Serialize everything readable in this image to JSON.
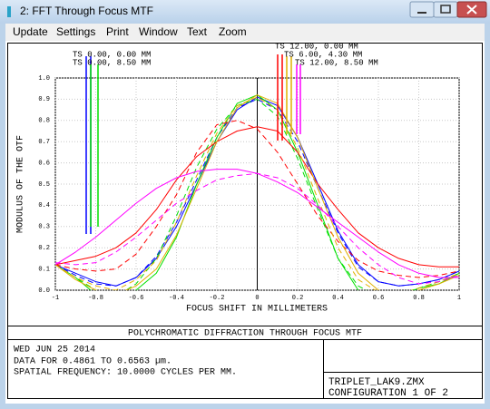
{
  "window": {
    "title": "2: FFT Through Focus MTF"
  },
  "menu": [
    "Update",
    "Settings",
    "Print",
    "Window",
    "Text",
    "Zoom"
  ],
  "chart_data": {
    "type": "line",
    "title": "POLYCHROMATIC DIFFRACTION THROUGH FOCUS MTF",
    "x_label": "FOCUS SHIFT IN MILLIMETERS",
    "y_label": "MODULUS OF THE OTF",
    "x": [
      -1,
      -0.9,
      -0.8,
      -0.7,
      -0.6,
      -0.5,
      -0.4,
      -0.3,
      -0.2,
      -0.1,
      0,
      0.1,
      0.2,
      0.3,
      0.4,
      0.5,
      0.6,
      0.7,
      0.8,
      0.9,
      1
    ],
    "xlim": [
      -1,
      1
    ],
    "ylim": [
      0,
      1
    ],
    "xticks": [
      -1,
      -0.8,
      -0.6,
      -0.4,
      -0.2,
      0,
      0.2,
      0.4,
      0.6,
      0.8,
      1
    ],
    "yticks": [
      {
        "value": 0,
        "label": "0.0"
      },
      0.1,
      0.2,
      0.3,
      0.4,
      0.5,
      0.6,
      0.7,
      0.8,
      0.9,
      {
        "value": 1,
        "label": "1.0"
      }
    ],
    "grid": true,
    "series": [
      {
        "name": "TS 0.00, 0.00 MM",
        "color": "#0000ff",
        "values": [
          0.12,
          0.08,
          0.04,
          0.02,
          0.06,
          0.15,
          0.3,
          0.5,
          0.7,
          0.85,
          0.91,
          0.87,
          0.72,
          0.5,
          0.28,
          0.12,
          0.04,
          0.02,
          0.03,
          0.05,
          0.09
        ],
        "s_values": [
          0.12,
          0.07,
          0.03,
          0.02,
          0.06,
          0.16,
          0.32,
          0.52,
          0.72,
          0.86,
          0.9,
          0.85,
          0.7,
          0.48,
          0.27,
          0.11,
          0.04,
          0.02,
          0.03,
          0.05,
          0.09
        ]
      },
      {
        "name": "TS 0.00, 8.50 MM",
        "color": "#00e000",
        "values": [
          0.12,
          0.06,
          -0.02,
          -0.05,
          0,
          0.08,
          0.25,
          0.5,
          0.72,
          0.88,
          0.92,
          0.85,
          0.65,
          0.4,
          0.15,
          0,
          -0.05,
          -0.03,
          0.01,
          0.03,
          0.08
        ],
        "s_values": [
          0.12,
          0.06,
          0,
          -0.03,
          0.03,
          0.15,
          0.35,
          0.58,
          0.76,
          0.87,
          0.9,
          0.82,
          0.62,
          0.38,
          0.15,
          0.02,
          -0.03,
          -0.02,
          0.01,
          0.04,
          0.08
        ]
      },
      {
        "name": "TS 12.00, 0.00 MM",
        "color": "#ff0000",
        "values": [
          0.12,
          0.14,
          0.16,
          0.2,
          0.27,
          0.38,
          0.52,
          0.63,
          0.7,
          0.75,
          0.77,
          0.75,
          0.65,
          0.5,
          0.38,
          0.27,
          0.2,
          0.15,
          0.12,
          0.11,
          0.11
        ],
        "s_values": [
          0.12,
          0.1,
          0.09,
          0.1,
          0.17,
          0.3,
          0.45,
          0.65,
          0.78,
          0.8,
          0.76,
          0.65,
          0.5,
          0.35,
          0.23,
          0.14,
          0.09,
          0.07,
          0.06,
          0.07,
          0.09
        ]
      },
      {
        "name": "TS 6.00, 4.30 MM",
        "color": "#e0b000",
        "values": [
          0.12,
          0.05,
          0,
          -0.02,
          0.02,
          0.1,
          0.26,
          0.48,
          0.7,
          0.86,
          0.92,
          0.88,
          0.72,
          0.48,
          0.25,
          0.08,
          0,
          -0.02,
          0,
          0.03,
          0.07
        ],
        "s_values": [
          0.12,
          0.06,
          0.02,
          0,
          0.05,
          0.14,
          0.32,
          0.54,
          0.74,
          0.87,
          0.91,
          0.85,
          0.67,
          0.43,
          0.2,
          0.05,
          -0.01,
          -0.02,
          0.01,
          0.04,
          0.08
        ]
      },
      {
        "name": "TS 12.00, 8.50 MM",
        "color": "#ff00ff",
        "values": [
          0.12,
          0.18,
          0.25,
          0.33,
          0.41,
          0.48,
          0.53,
          0.56,
          0.57,
          0.57,
          0.55,
          0.51,
          0.46,
          0.39,
          0.32,
          0.25,
          0.18,
          0.12,
          0.08,
          0.06,
          0.06
        ],
        "s_values": [
          0.13,
          0.12,
          0.13,
          0.18,
          0.25,
          0.33,
          0.41,
          0.47,
          0.52,
          0.54,
          0.55,
          0.53,
          0.48,
          0.4,
          0.3,
          0.2,
          0.12,
          0.06,
          0.03,
          0.04,
          0.07
        ]
      }
    ]
  },
  "info": {
    "lines": [
      "WED JUN 25 2014",
      "DATA FOR 0.4861 TO 0.6563 µm.",
      "SPATIAL FREQUENCY: 10.0000 CYCLES PER MM."
    ],
    "file": "TRIPLET_LAK9.ZMX",
    "configuration": "CONFIGURATION 1 OF 2"
  }
}
